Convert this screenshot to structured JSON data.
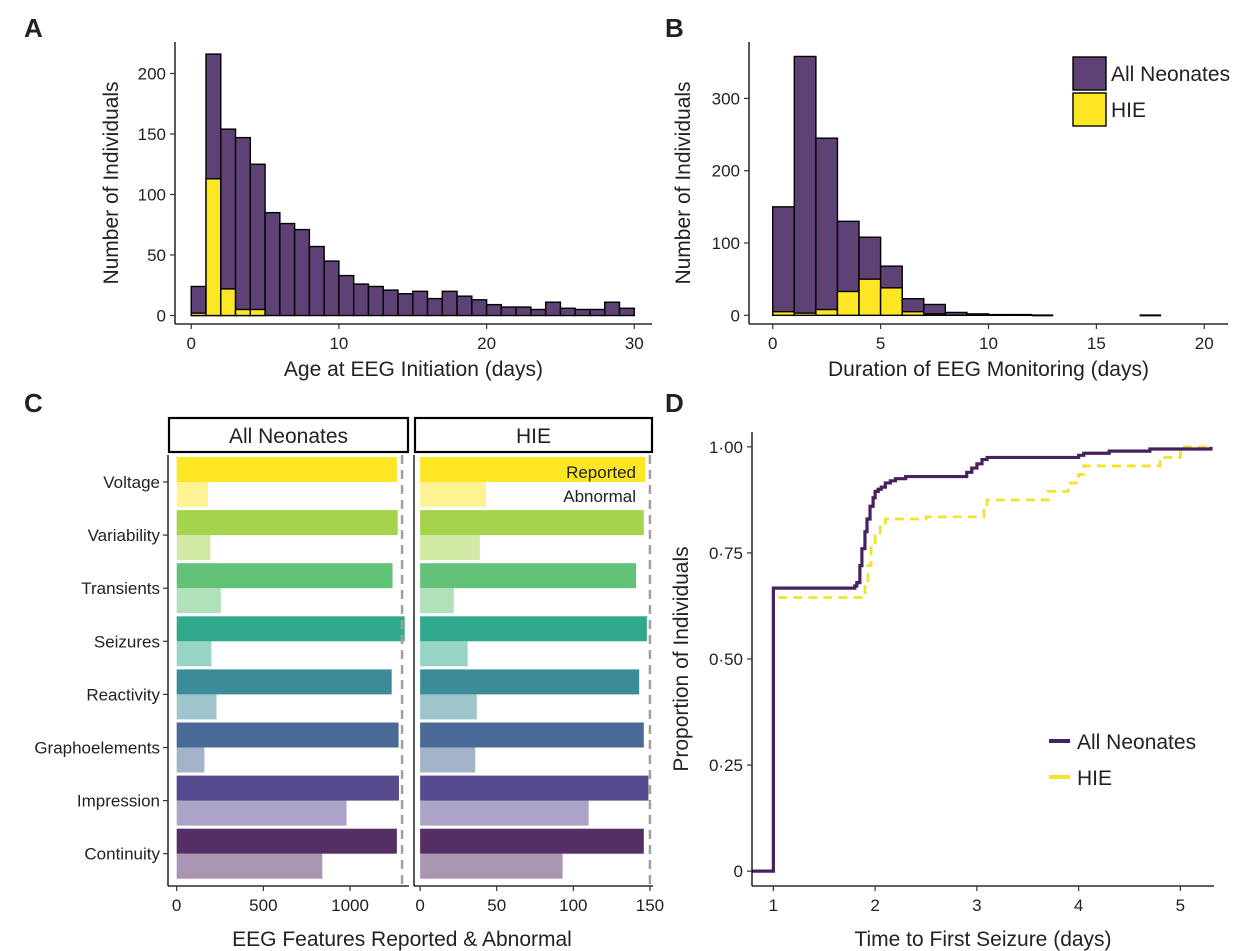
{
  "colors": {
    "all_neonates": "#5e4275",
    "hie": "#fde725",
    "km_all": "#47205f",
    "km_hie": "#f5e22e",
    "features": {
      "Voltage": "#fde725",
      "Variability": "#a5d34c",
      "Transients": "#62c378",
      "Seizures": "#31a98c",
      "Reactivity": "#3b8c98",
      "Graphoelements": "#486a95",
      "Impression": "#574a8e",
      "Continuity": "#562e66"
    }
  },
  "chart_data": [
    {
      "panel": "A",
      "type": "bar",
      "stacked": "overlay",
      "xlabel": "Age at EEG Initiation (days)",
      "ylabel": "Number of Individuals",
      "xlim": [
        -1.1,
        31.2
      ],
      "ylim": [
        -7,
        226
      ],
      "xticks": [
        "0",
        "10",
        "20",
        "30"
      ],
      "xtick_values": [
        0,
        10,
        20,
        30
      ],
      "yticks": [
        "0",
        "50",
        "100",
        "150",
        "200"
      ],
      "ytick_values": [
        0,
        50,
        100,
        150,
        200
      ],
      "bin_width": 1,
      "bin_start": 0,
      "series": [
        {
          "name": "All Neonates",
          "values": [
            24,
            216,
            154,
            147,
            125,
            85,
            76,
            71,
            57,
            45,
            33,
            26,
            24,
            21,
            18,
            20,
            14,
            20,
            16,
            13,
            9,
            7,
            7,
            5,
            11,
            6,
            5,
            5,
            11,
            6
          ]
        },
        {
          "name": "HIE",
          "values": [
            2,
            113,
            22,
            5,
            5,
            0,
            0,
            0,
            0,
            0,
            0,
            0,
            0,
            0,
            0,
            0,
            0,
            0,
            0,
            0,
            0,
            0,
            0,
            0,
            0,
            0,
            0,
            0,
            0,
            0
          ]
        }
      ]
    },
    {
      "panel": "B",
      "type": "bar",
      "stacked": "overlay",
      "xlabel": "Duration of EEG Monitoring (days)",
      "ylabel": "Number of Individuals",
      "xlim": [
        -1.1,
        21.1
      ],
      "ylim": [
        -12,
        378
      ],
      "xticks": [
        "0",
        "5",
        "10",
        "15",
        "20"
      ],
      "xtick_values": [
        0,
        5,
        10,
        15,
        20
      ],
      "yticks": [
        "0",
        "100",
        "200",
        "300"
      ],
      "ytick_values": [
        0,
        100,
        200,
        300
      ],
      "bin_width": 1,
      "bin_start": 0,
      "legend": {
        "position": "top-right",
        "entries": [
          "All Neonates",
          "HIE"
        ]
      },
      "series": [
        {
          "name": "All Neonates",
          "values": [
            150,
            358,
            245,
            130,
            108,
            68,
            23,
            15,
            4,
            2,
            1,
            1,
            0,
            0,
            0,
            0,
            0,
            0,
            0,
            0
          ]
        },
        {
          "name": "HIE",
          "values": [
            5,
            3,
            8,
            33,
            50,
            38,
            5,
            2,
            0,
            0,
            0,
            0,
            0,
            0,
            0,
            0,
            0,
            0,
            0,
            0
          ]
        }
      ]
    },
    {
      "panel": "C",
      "type": "bar",
      "orientation": "horizontal",
      "xlabel": "EEG Features Reported & Abnormal",
      "categories": [
        "Voltage",
        "Variability",
        "Transients",
        "Seizures",
        "Reactivity",
        "Graphoelements",
        "Impression",
        "Continuity"
      ],
      "facets": [
        {
          "title": "All Neonates",
          "xlim": [
            -50,
            1340
          ],
          "xticks": [
            "0",
            "500",
            "1000"
          ],
          "xtick_values": [
            0,
            500,
            1000
          ],
          "total": 1300,
          "reported": [
            1270,
            1275,
            1245,
            1315,
            1240,
            1280,
            1282,
            1270
          ],
          "abnormal": [
            180,
            195,
            255,
            200,
            230,
            160,
            980,
            840
          ]
        },
        {
          "title": "HIE",
          "xlim": [
            -4,
            152
          ],
          "xticks": [
            "0",
            "50",
            "100",
            "150"
          ],
          "xtick_values": [
            0,
            50,
            100,
            150
          ],
          "total": 150,
          "reported": [
            147,
            146,
            141,
            148,
            143,
            146,
            149,
            146
          ],
          "abnormal": [
            43,
            39,
            22,
            31,
            37,
            36,
            110,
            93
          ],
          "bar_labels": {
            "reported": "Reported",
            "abnormal": "Abnormal"
          }
        }
      ]
    },
    {
      "panel": "D",
      "type": "line",
      "step": true,
      "xlabel": "Time to First Seizure (days)",
      "ylabel": "Proportion of Individuals",
      "xlim": [
        0.79,
        5.33
      ],
      "ylim": [
        -0.035,
        1.035
      ],
      "xticks": [
        "1",
        "2",
        "3",
        "4",
        "5"
      ],
      "xtick_values": [
        1,
        2,
        3,
        4,
        5
      ],
      "yticks": [
        "0",
        "0·25",
        "0·50",
        "0·75",
        "1·00"
      ],
      "ytick_values": [
        0,
        0.25,
        0.5,
        0.75,
        1.0
      ],
      "legend": {
        "position": "bottom-right",
        "entries": [
          "All Neonates",
          "HIE"
        ]
      },
      "series": [
        {
          "name": "All Neonates",
          "x": [
            0.79,
            1.0,
            1.0,
            1.75,
            1.8,
            1.82,
            1.85,
            1.87,
            1.9,
            1.92,
            1.95,
            1.98,
            2.0,
            2.03,
            2.06,
            2.1,
            2.15,
            2.2,
            2.3,
            2.4,
            2.55,
            2.6,
            2.9,
            2.95,
            3.0,
            3.05,
            3.1,
            3.5,
            4.0,
            4.05,
            4.2,
            4.3,
            4.6,
            4.7,
            5.0,
            5.3
          ],
          "y": [
            0.0,
            0.0,
            0.667,
            0.667,
            0.672,
            0.68,
            0.72,
            0.76,
            0.8,
            0.83,
            0.86,
            0.88,
            0.895,
            0.9,
            0.905,
            0.915,
            0.92,
            0.925,
            0.93,
            0.93,
            0.93,
            0.93,
            0.94,
            0.95,
            0.96,
            0.97,
            0.975,
            0.975,
            0.98,
            0.985,
            0.985,
            0.99,
            0.99,
            0.995,
            0.995,
            1.0
          ]
        },
        {
          "name": "HIE",
          "x": [
            0.79,
            1.0,
            1.0,
            1.87,
            1.9,
            1.93,
            1.96,
            2.0,
            2.05,
            2.1,
            2.4,
            2.5,
            2.8,
            3.07,
            3.1,
            3.6,
            3.7,
            3.8,
            3.9,
            4.0,
            4.05,
            4.7,
            4.8,
            5.0,
            5.3
          ],
          "y": [
            0.0,
            0.0,
            0.645,
            0.645,
            0.68,
            0.72,
            0.77,
            0.79,
            0.82,
            0.83,
            0.83,
            0.835,
            0.835,
            0.855,
            0.875,
            0.875,
            0.895,
            0.895,
            0.915,
            0.935,
            0.955,
            0.955,
            0.975,
            1.0,
            1.0
          ]
        }
      ]
    }
  ]
}
